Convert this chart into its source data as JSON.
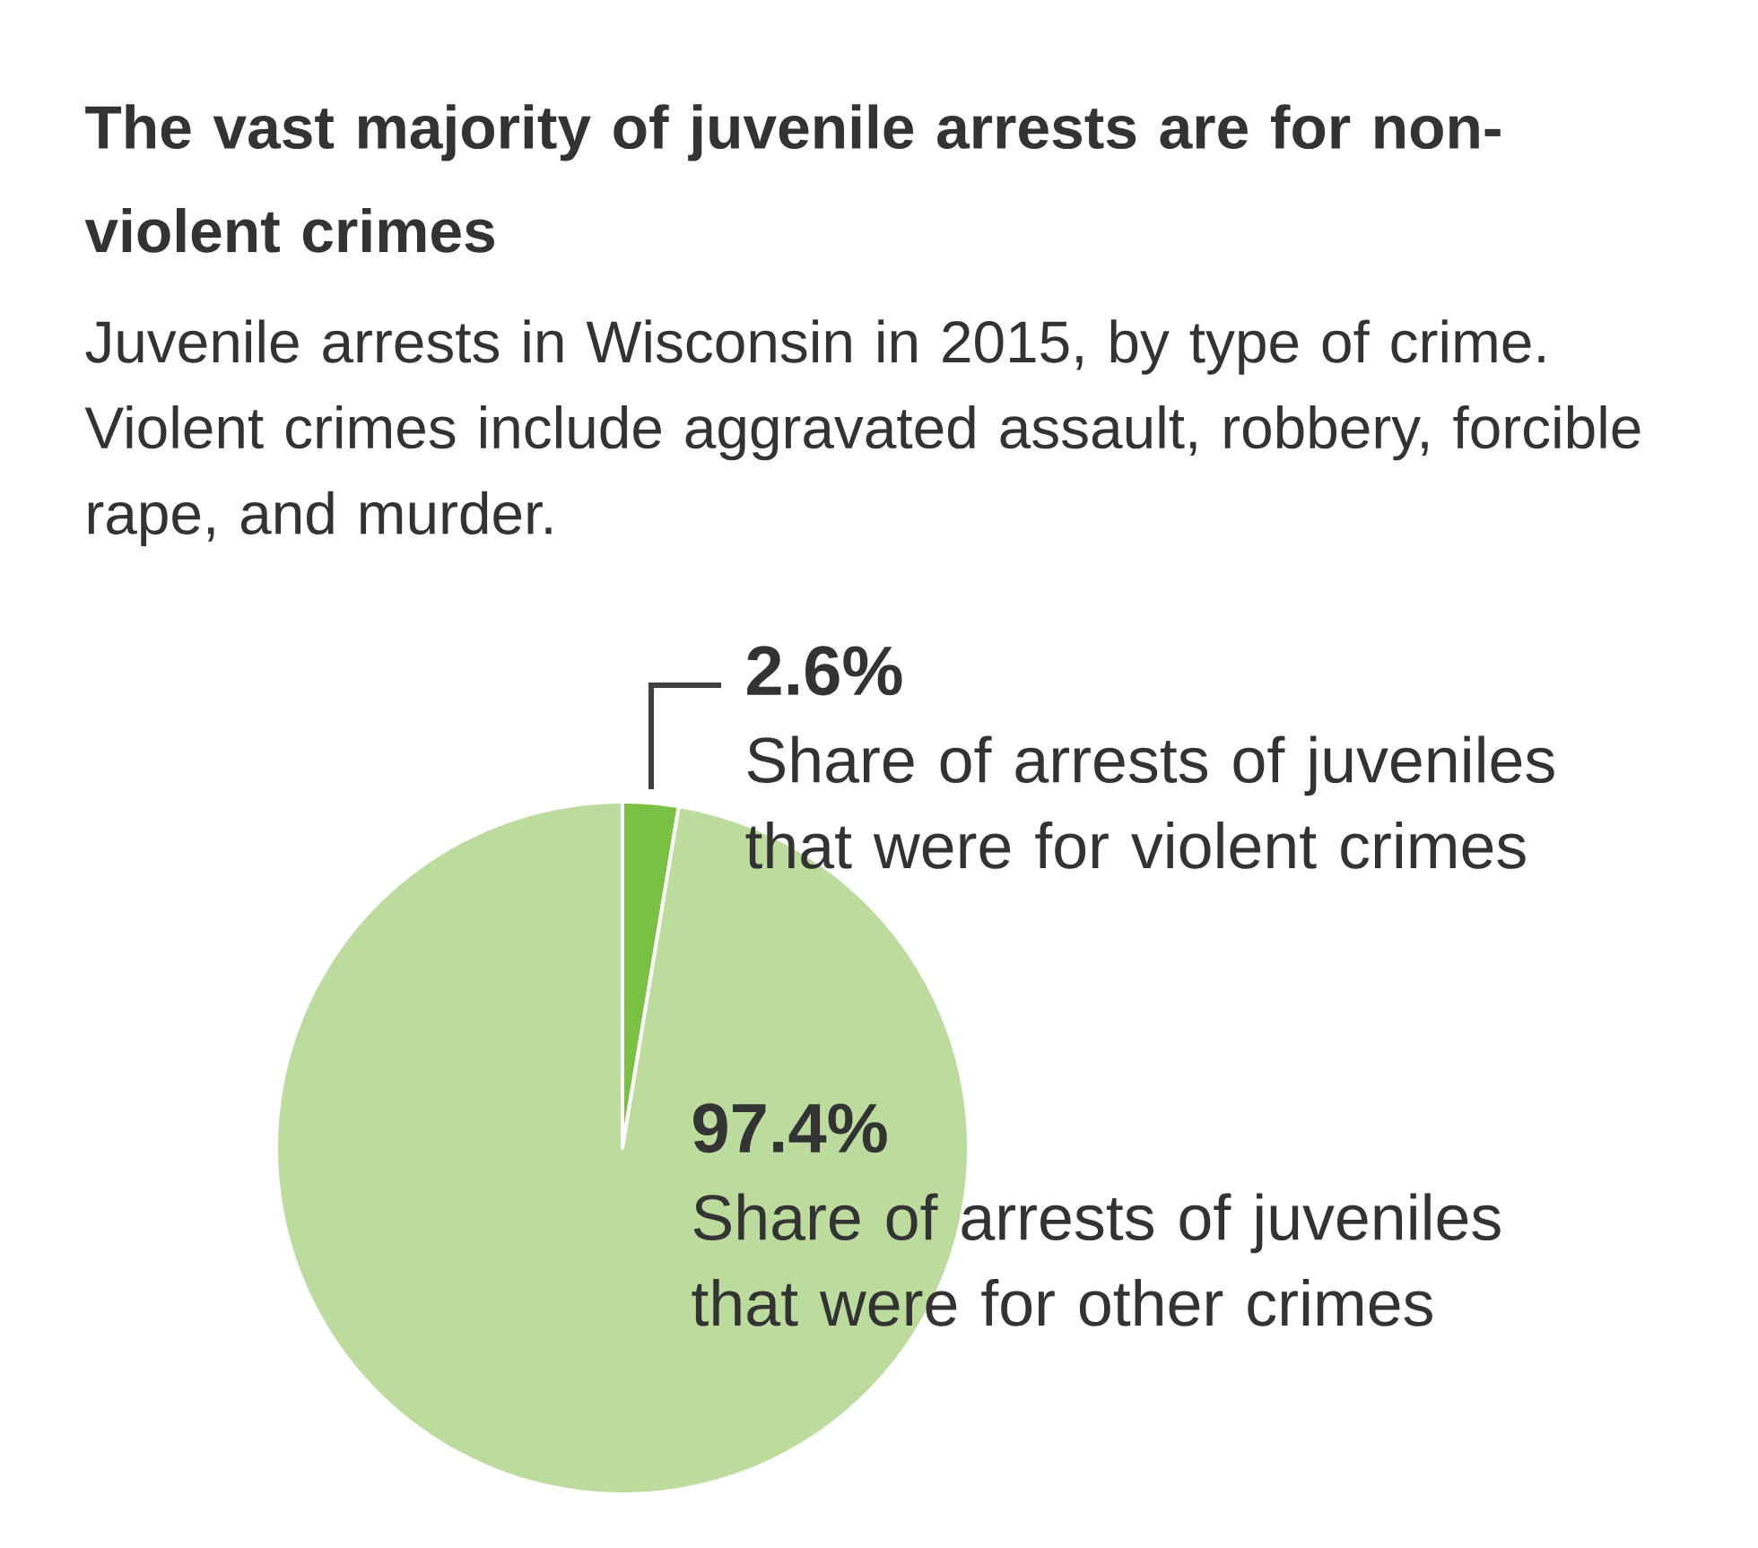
{
  "chart_data": {
    "type": "pie",
    "title": "The vast majority of juvenile arrests are for non-violent crimes",
    "subtitle": "Juvenile arrests in Wisconsin in 2015, by type of crime. Violent crimes include aggravated assault, robbery, forcible rape, and murder.",
    "categories": [
      "Share of arrests of juveniles that were for violent crimes",
      "Share of arrests of juveniles that were for other crimes"
    ],
    "values": [
      2.6,
      97.4
    ],
    "value_labels": [
      "2.6%",
      "97.4%"
    ],
    "colors": [
      "#7ac143",
      "#bcdc9d"
    ]
  }
}
